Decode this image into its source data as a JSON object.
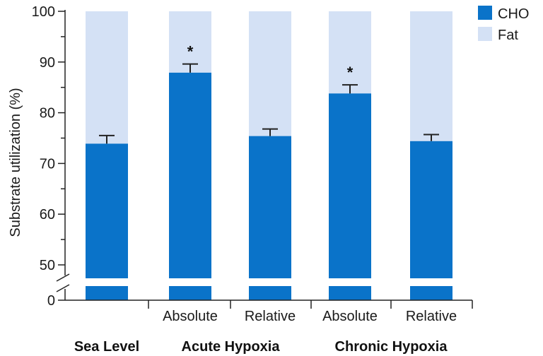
{
  "chart_data": {
    "type": "bar",
    "stacked": true,
    "ylabel": "Substrate utilization (%)",
    "ylim": [
      0,
      100
    ],
    "axis_break": [
      0,
      48
    ],
    "yticks": [
      0,
      50,
      60,
      70,
      80,
      90,
      100
    ],
    "ytick_labels": [
      "0",
      "50",
      "60",
      "70",
      "80",
      "90",
      "100"
    ],
    "categories": [
      "",
      "Absolute",
      "Relative",
      "Absolute",
      "Relative"
    ],
    "groups": [
      {
        "label": "Sea Level",
        "members": [
          0
        ]
      },
      {
        "label": "Acute Hypoxia",
        "members": [
          1,
          2
        ]
      },
      {
        "label": "Chronic Hypoxia",
        "members": [
          3,
          4
        ]
      }
    ],
    "series": [
      {
        "name": "CHO",
        "values": [
          73.9,
          87.9,
          75.4,
          83.8,
          74.4
        ],
        "error": [
          1.6,
          1.7,
          1.4,
          1.7,
          1.3
        ]
      },
      {
        "name": "Fat",
        "values": [
          26.1,
          12.1,
          24.6,
          16.2,
          25.6
        ]
      }
    ],
    "significance": [
      "",
      "*",
      "",
      "*",
      ""
    ],
    "legend_position": "top-right",
    "colors": {
      "CHO": "#0a73c9",
      "Fat": "#d4e1f5",
      "axis": "#222222"
    }
  }
}
